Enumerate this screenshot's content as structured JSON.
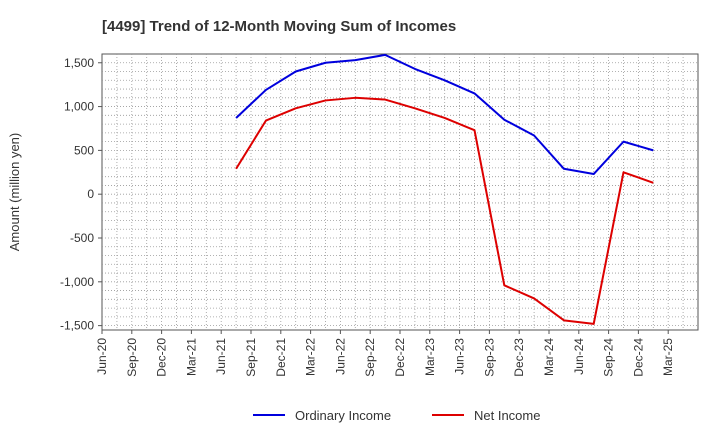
{
  "chart_data": {
    "type": "line",
    "title": "[4499]  Trend of 12-Month Moving Sum of Incomes",
    "xlabel": "",
    "ylabel": "Amount (million yen)",
    "ylim": [
      -1550,
      1600
    ],
    "yticks": [
      1500,
      1000,
      500,
      0,
      -500,
      -1000,
      -1500
    ],
    "ytick_labels": [
      "1,500",
      "1,000",
      "500",
      "0",
      "-500",
      "-1,000",
      "-1,500"
    ],
    "categories": [
      "Jun-20",
      "Sep-20",
      "Dec-20",
      "Mar-21",
      "Jun-21",
      "Sep-21",
      "Dec-21",
      "Mar-22",
      "Jun-22",
      "Sep-22",
      "Dec-22",
      "Mar-23",
      "Jun-23",
      "Sep-23",
      "Dec-23",
      "Mar-24",
      "Jun-24",
      "Sep-24",
      "Dec-24",
      "Mar-25"
    ],
    "grid": true,
    "legend_position": "bottom",
    "series": [
      {
        "name": "Ordinary Income",
        "color": "#0000dd",
        "values": [
          null,
          null,
          null,
          null,
          870,
          1190,
          1400,
          1500,
          1530,
          1590,
          1430,
          1300,
          1150,
          850,
          670,
          290,
          230,
          600,
          500,
          null
        ]
      },
      {
        "name": "Net Income",
        "color": "#dd0000",
        "values": [
          null,
          null,
          null,
          null,
          290,
          840,
          980,
          1070,
          1100,
          1080,
          980,
          870,
          730,
          -1040,
          -1190,
          -1440,
          -1480,
          250,
          130,
          null
        ]
      }
    ]
  }
}
